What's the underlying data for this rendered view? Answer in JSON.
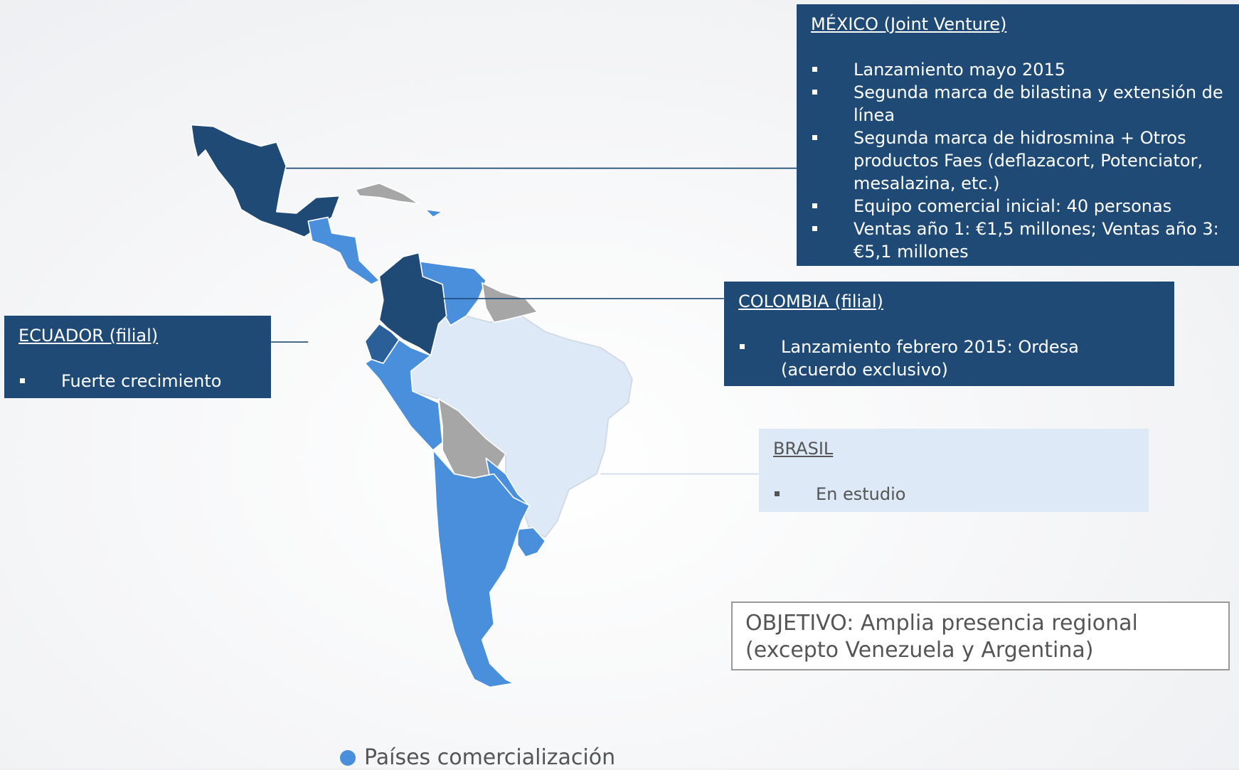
{
  "mexico": {
    "title": "MÉXICO (Joint Venture)",
    "items": [
      "Lanzamiento mayo 2015",
      "Segunda marca de bilastina y extensión de línea",
      "Segunda marca de hidrosmina + Otros productos Faes (deflazacort, Potenciator, mesalazina, etc.)",
      "Equipo comercial inicial: 40 personas",
      "Ventas año 1: €1,5 millones; Ventas año 3: €5,1 millones"
    ]
  },
  "colombia": {
    "title": "COLOMBIA (filial)",
    "items": [
      "Lanzamiento febrero 2015: Ordesa (acuerdo exclusivo)"
    ]
  },
  "ecuador": {
    "title": "ECUADOR (filial)",
    "items": [
      "Fuerte crecimiento"
    ]
  },
  "brasil": {
    "title": "BRASIL",
    "items": [
      "En estudio"
    ]
  },
  "objective": "OBJETIVO: Amplia presencia regional (excepto Venezuela y Argentina)",
  "legend": "Países comercialización"
}
